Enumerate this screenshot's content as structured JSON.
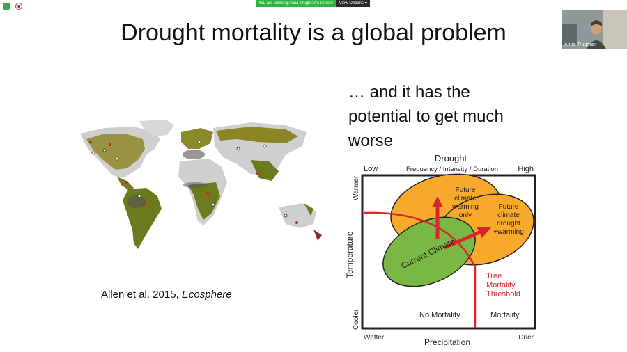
{
  "zoom": {
    "share_banner": "You are viewing Anna Trugman's screen",
    "view_options": "View Options",
    "participant_name": "Anna Trugman"
  },
  "slide": {
    "title": "Drought mortality is a global problem",
    "subtitle_lines": [
      "… and it has the",
      "potential to get much",
      "worse"
    ],
    "citation_prefix": "Allen et al. 2015, ",
    "citation_journal": "Ecosphere"
  },
  "diagram": {
    "top_label": "Drought",
    "top_sublabel": "Frequency / Intensity / Duration",
    "top_low": "Low",
    "top_high": "High",
    "left_label": "Temperature",
    "left_top": "Warmer",
    "left_bottom": "Cooler",
    "bottom_label": "Precipitation",
    "bottom_left": "Wetter",
    "bottom_right": "Drier",
    "current_climate": "Current Climate",
    "future_warming": [
      "Future",
      "climate",
      "warming",
      "only"
    ],
    "future_drought": [
      "Future",
      "climate",
      "drought",
      "+warming"
    ],
    "threshold": [
      "Tree",
      "Mortality",
      "Threshold"
    ],
    "no_mortality": "No Mortality",
    "mortality": "Mortality",
    "colors": {
      "orange": "#f7a92b",
      "green": "#79b843",
      "red": "#d9262a"
    }
  }
}
